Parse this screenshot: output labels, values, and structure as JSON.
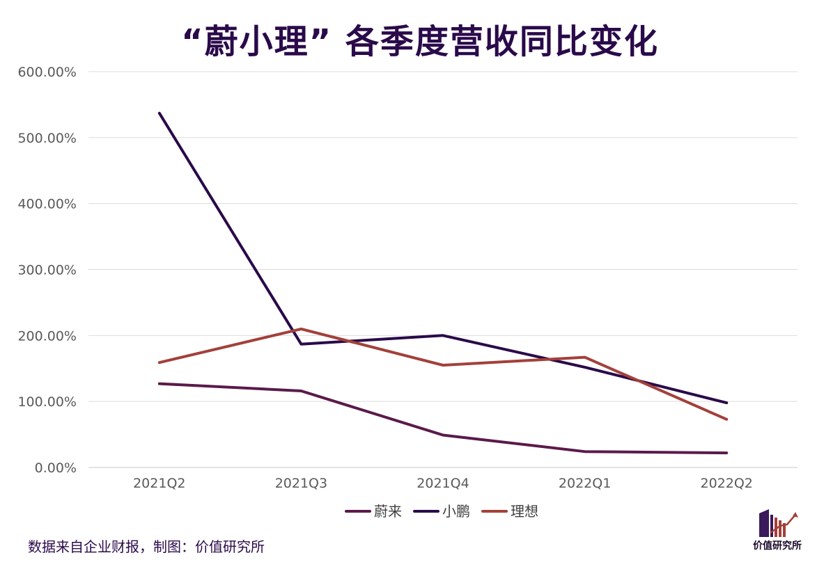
{
  "chart_data": {
    "type": "line",
    "title": "“蔚小理” 各季度营收同比变化",
    "categories": [
      "2021Q2",
      "2021Q3",
      "2021Q4",
      "2022Q1",
      "2022Q2"
    ],
    "series": [
      {
        "name": "蔚来",
        "color": "#5a1a4a",
        "values": [
          127,
          116,
          49,
          24,
          22
        ]
      },
      {
        "name": "小鹏",
        "color": "#2a0a4a",
        "values": [
          537,
          187,
          200,
          152,
          98
        ]
      },
      {
        "name": "理想",
        "color": "#a3403a",
        "values": [
          159,
          210,
          155,
          167,
          73
        ]
      }
    ],
    "ylim": [
      0,
      600
    ],
    "yticks": [
      "0.00%",
      "100.00%",
      "200.00%",
      "300.00%",
      "400.00%",
      "500.00%",
      "600.00%"
    ],
    "grid": true,
    "legend": "bottom"
  },
  "source_note": "数据来自企业财报，制图：价值研究所",
  "logo_text": "价值研究所"
}
